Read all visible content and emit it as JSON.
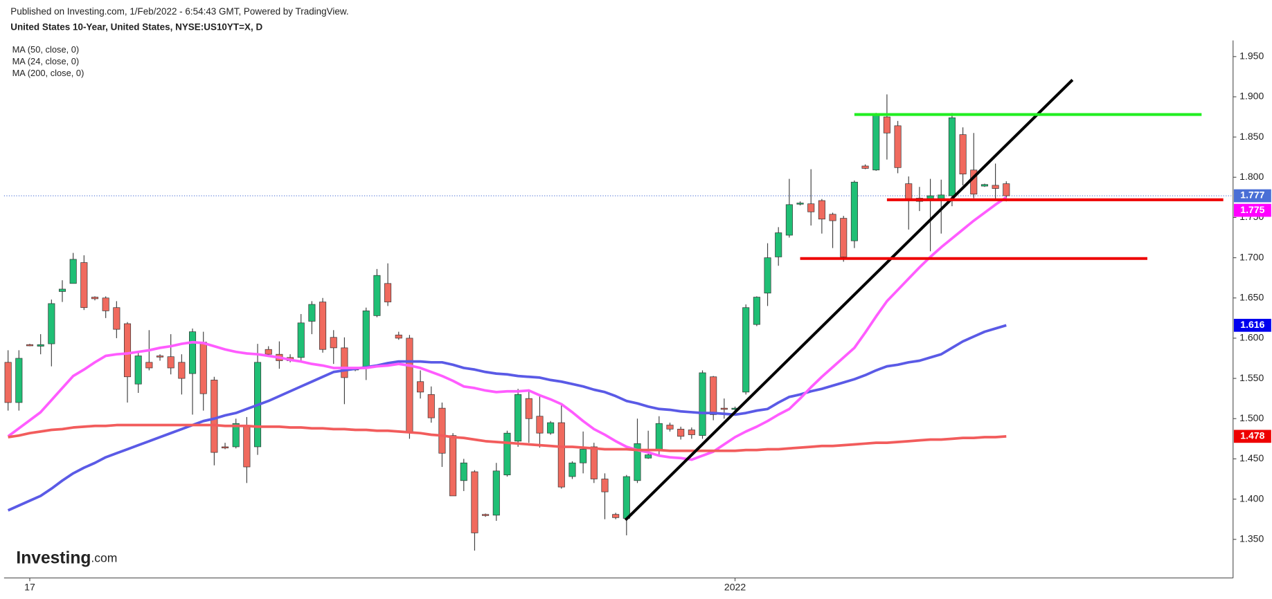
{
  "header": {
    "published": "Published on Investing.com, 1/Feb/2022 - 6:54:43 GMT, Powered by TradingView.",
    "symbol": "United States 10-Year, United States, NYSE:US10YT=X, D"
  },
  "logo": {
    "brand": "Investing",
    "suffix": ".com"
  },
  "chart_data": {
    "type": "candlestick",
    "categories": [
      null,
      null,
      "17",
      null,
      null,
      null,
      null,
      null,
      null,
      null,
      null,
      null,
      null,
      null,
      null,
      null,
      null,
      null,
      null,
      null,
      null,
      null,
      null,
      null,
      null,
      null,
      null,
      null,
      null,
      null,
      null,
      null,
      null,
      null,
      null,
      null,
      null,
      null,
      null,
      null,
      null,
      null,
      null,
      null,
      null,
      null,
      null,
      null,
      null,
      null,
      null,
      null,
      null,
      null,
      null,
      null,
      null,
      null,
      null,
      null,
      null,
      null,
      null,
      null,
      null,
      null,
      null,
      "2022",
      null,
      null,
      null,
      null,
      null,
      null,
      null,
      null,
      null,
      null,
      null,
      null,
      null,
      null,
      null,
      null,
      null,
      null,
      null,
      null,
      null,
      null,
      null,
      null,
      null
    ],
    "open": [
      1.57,
      1.52,
      1.592,
      1.59,
      1.593,
      1.658,
      1.668,
      1.694,
      1.651,
      1.65,
      1.638,
      1.618,
      1.543,
      1.57,
      1.578,
      1.577,
      1.57,
      1.556,
      1.595,
      1.548,
      1.465,
      1.465,
      1.49,
      1.465,
      1.586,
      1.58,
      1.576,
      1.576,
      1.621,
      1.645,
      1.601,
      1.588,
      1.562,
      1.563,
      1.628,
      1.668,
      1.604,
      1.6,
      1.546,
      1.53,
      1.513,
      1.479,
      1.423,
      1.434,
      1.381,
      1.38,
      1.43,
      1.472,
      1.525,
      1.503,
      1.482,
      1.495,
      1.428,
      1.445,
      1.465,
      1.425,
      1.381,
      1.376,
      1.423,
      1.451,
      1.46,
      1.492,
      1.487,
      1.486,
      1.479,
      1.552,
      1.513,
      1.512,
      1.533,
      1.617,
      1.656,
      1.701,
      1.728,
      1.767,
      1.767,
      1.771,
      1.754,
      1.749,
      1.721,
      1.814,
      1.809,
      1.875,
      1.864,
      1.792,
      1.77,
      1.772,
      1.773,
      1.777,
      1.853,
      1.809,
      1.789,
      1.79,
      1.792
    ],
    "high": [
      1.585,
      1.585,
      1.593,
      1.605,
      1.648,
      1.672,
      1.706,
      1.703,
      1.652,
      1.652,
      1.646,
      1.62,
      1.583,
      1.61,
      1.58,
      1.605,
      1.58,
      1.612,
      1.608,
      1.552,
      1.47,
      1.5,
      1.502,
      1.593,
      1.59,
      1.596,
      1.58,
      1.63,
      1.646,
      1.65,
      1.61,
      1.601,
      1.564,
      1.638,
      1.686,
      1.693,
      1.608,
      1.604,
      1.56,
      1.54,
      1.52,
      1.482,
      1.45,
      1.436,
      1.382,
      1.445,
      1.485,
      1.537,
      1.536,
      1.53,
      1.497,
      1.517,
      1.447,
      1.484,
      1.47,
      1.432,
      1.383,
      1.43,
      1.5,
      1.485,
      1.503,
      1.495,
      1.49,
      1.489,
      1.56,
      1.553,
      1.525,
      1.515,
      1.642,
      1.652,
      1.718,
      1.738,
      1.798,
      1.77,
      1.81,
      1.773,
      1.756,
      1.752,
      1.796,
      1.816,
      1.88,
      1.903,
      1.87,
      1.801,
      1.788,
      1.798,
      1.797,
      1.88,
      1.862,
      1.855,
      1.792,
      1.817,
      1.795
    ],
    "low": [
      1.51,
      1.51,
      1.59,
      1.58,
      1.565,
      1.645,
      1.668,
      1.635,
      1.647,
      1.625,
      1.6,
      1.52,
      1.532,
      1.56,
      1.572,
      1.555,
      1.53,
      1.505,
      1.51,
      1.442,
      1.462,
      1.463,
      1.42,
      1.455,
      1.578,
      1.562,
      1.57,
      1.572,
      1.605,
      1.582,
      1.568,
      1.518,
      1.559,
      1.548,
      1.626,
      1.64,
      1.598,
      1.475,
      1.525,
      1.495,
      1.44,
      1.404,
      1.41,
      1.336,
      1.378,
      1.373,
      1.428,
      1.465,
      1.47,
      1.464,
      1.48,
      1.413,
      1.425,
      1.432,
      1.42,
      1.375,
      1.375,
      1.355,
      1.42,
      1.45,
      1.455,
      1.484,
      1.474,
      1.475,
      1.475,
      1.498,
      1.5,
      1.508,
      1.53,
      1.615,
      1.64,
      1.69,
      1.725,
      1.765,
      1.74,
      1.73,
      1.712,
      1.695,
      1.712,
      1.81,
      1.808,
      1.822,
      1.805,
      1.735,
      1.758,
      1.708,
      1.73,
      1.764,
      1.79,
      1.774,
      1.788,
      1.773,
      1.77
    ],
    "close": [
      1.52,
      1.575,
      1.591,
      1.592,
      1.643,
      1.661,
      1.698,
      1.638,
      1.649,
      1.634,
      1.611,
      1.552,
      1.578,
      1.563,
      1.577,
      1.563,
      1.55,
      1.608,
      1.531,
      1.458,
      1.464,
      1.494,
      1.44,
      1.57,
      1.58,
      1.572,
      1.572,
      1.619,
      1.642,
      1.586,
      1.588,
      1.551,
      1.561,
      1.634,
      1.678,
      1.645,
      1.6,
      1.483,
      1.533,
      1.501,
      1.457,
      1.404,
      1.445,
      1.358,
      1.38,
      1.435,
      1.482,
      1.53,
      1.5,
      1.482,
      1.495,
      1.415,
      1.445,
      1.462,
      1.425,
      1.409,
      1.377,
      1.428,
      1.469,
      1.455,
      1.494,
      1.487,
      1.478,
      1.48,
      1.557,
      1.505,
      1.512,
      1.513,
      1.638,
      1.651,
      1.7,
      1.731,
      1.766,
      1.768,
      1.757,
      1.748,
      1.746,
      1.701,
      1.794,
      1.811,
      1.877,
      1.855,
      1.812,
      1.772,
      1.774,
      1.777,
      1.778,
      1.874,
      1.804,
      1.779,
      1.791,
      1.786,
      1.777
    ],
    "up_color": "#1fbf75",
    "down_color": "#f06a5e",
    "wick_color": "#404040",
    "series": [
      {
        "name": "MA (50, close, 0)",
        "color": "#5a5ae6",
        "label_color": "#0000ee",
        "values": [
          1.386,
          1.392,
          1.398,
          1.404,
          1.413,
          1.423,
          1.432,
          1.439,
          1.445,
          1.452,
          1.457,
          1.462,
          1.467,
          1.472,
          1.477,
          1.482,
          1.487,
          1.492,
          1.497,
          1.5,
          1.504,
          1.507,
          1.512,
          1.517,
          1.522,
          1.528,
          1.534,
          1.54,
          1.546,
          1.552,
          1.558,
          1.56,
          1.562,
          1.564,
          1.566,
          1.569,
          1.571,
          1.571,
          1.571,
          1.57,
          1.57,
          1.567,
          1.563,
          1.561,
          1.558,
          1.556,
          1.555,
          1.553,
          1.552,
          1.551,
          1.548,
          1.546,
          1.543,
          1.54,
          1.536,
          1.533,
          1.528,
          1.522,
          1.519,
          1.515,
          1.512,
          1.511,
          1.509,
          1.508,
          1.507,
          1.507,
          1.506,
          1.505,
          1.507,
          1.51,
          1.512,
          1.52,
          1.527,
          1.53,
          1.534,
          1.537,
          1.541,
          1.545,
          1.549,
          1.554,
          1.56,
          1.565,
          1.567,
          1.57,
          1.572,
          1.576,
          1.58,
          1.588,
          1.596,
          1.602,
          1.608,
          1.612,
          1.616
        ]
      },
      {
        "name": "MA (24, close, 0)",
        "color": "#ff5cff",
        "label_color": "#ff00ff",
        "values": [
          1.478,
          1.488,
          1.498,
          1.508,
          1.523,
          1.538,
          1.553,
          1.561,
          1.57,
          1.578,
          1.58,
          1.581,
          1.583,
          1.585,
          1.588,
          1.59,
          1.593,
          1.595,
          1.594,
          1.59,
          1.586,
          1.583,
          1.581,
          1.58,
          1.578,
          1.576,
          1.573,
          1.571,
          1.568,
          1.566,
          1.563,
          1.563,
          1.563,
          1.563,
          1.565,
          1.566,
          1.568,
          1.566,
          1.563,
          1.558,
          1.553,
          1.547,
          1.54,
          1.538,
          1.535,
          1.533,
          1.534,
          1.534,
          1.535,
          1.529,
          1.524,
          1.518,
          1.508,
          1.497,
          1.487,
          1.48,
          1.472,
          1.465,
          1.461,
          1.458,
          1.454,
          1.452,
          1.451,
          1.449,
          1.454,
          1.459,
          1.468,
          1.477,
          1.484,
          1.49,
          1.497,
          1.505,
          1.512,
          1.525,
          1.539,
          1.552,
          1.564,
          1.576,
          1.588,
          1.607,
          1.627,
          1.646,
          1.66,
          1.674,
          1.688,
          1.701,
          1.713,
          1.724,
          1.735,
          1.746,
          1.756,
          1.766,
          1.775
        ]
      },
      {
        "name": "MA (200, close, 0)",
        "color": "#f25c5c",
        "label_color": "#ee0000",
        "values": [
          1.477,
          1.479,
          1.482,
          1.484,
          1.486,
          1.487,
          1.489,
          1.49,
          1.491,
          1.491,
          1.492,
          1.492,
          1.492,
          1.492,
          1.492,
          1.492,
          1.492,
          1.492,
          1.492,
          1.492,
          1.491,
          1.491,
          1.491,
          1.49,
          1.49,
          1.49,
          1.489,
          1.489,
          1.488,
          1.488,
          1.487,
          1.487,
          1.486,
          1.486,
          1.485,
          1.485,
          1.484,
          1.483,
          1.482,
          1.48,
          1.479,
          1.477,
          1.476,
          1.474,
          1.472,
          1.471,
          1.47,
          1.469,
          1.468,
          1.467,
          1.466,
          1.465,
          1.465,
          1.464,
          1.463,
          1.462,
          1.462,
          1.462,
          1.461,
          1.461,
          1.461,
          1.46,
          1.46,
          1.46,
          1.46,
          1.46,
          1.46,
          1.46,
          1.461,
          1.461,
          1.462,
          1.462,
          1.463,
          1.464,
          1.465,
          1.466,
          1.466,
          1.467,
          1.468,
          1.469,
          1.47,
          1.47,
          1.471,
          1.472,
          1.473,
          1.474,
          1.474,
          1.475,
          1.476,
          1.476,
          1.477,
          1.477,
          1.478
        ]
      }
    ],
    "trendlines": [
      {
        "color": "#000000",
        "x": [
          56.9,
          98.1
        ],
        "y": [
          1.374,
          1.921
        ]
      },
      {
        "color": "#22ee22",
        "x": [
          78,
          110
        ],
        "y": [
          1.878,
          1.878
        ]
      },
      {
        "color": "#ee0000",
        "x": [
          81,
          112
        ],
        "y": [
          1.772,
          1.772
        ]
      },
      {
        "color": "#ee0000",
        "x": [
          73,
          105
        ],
        "y": [
          1.699,
          1.699
        ]
      }
    ],
    "price_line_color": "#4a6fd6",
    "xlim": [
      -0.37,
      112.9
    ],
    "ylim": [
      1.302,
      1.97
    ],
    "yticks": [
      {
        "value": 1.35,
        "label": "1.350"
      },
      {
        "value": 1.4,
        "label": "1.400"
      },
      {
        "value": 1.45,
        "label": "1.450"
      },
      {
        "value": 1.5,
        "label": "1.500"
      },
      {
        "value": 1.55,
        "label": "1.550"
      },
      {
        "value": 1.6,
        "label": "1.600"
      },
      {
        "value": 1.65,
        "label": "1.650"
      },
      {
        "value": 1.7,
        "label": "1.700"
      },
      {
        "value": 1.75,
        "label": "1.750"
      },
      {
        "value": 1.8,
        "label": "1.800"
      },
      {
        "value": 1.85,
        "label": "1.850"
      },
      {
        "value": 1.9,
        "label": "1.900"
      },
      {
        "value": 1.95,
        "label": "1.950"
      }
    ]
  }
}
